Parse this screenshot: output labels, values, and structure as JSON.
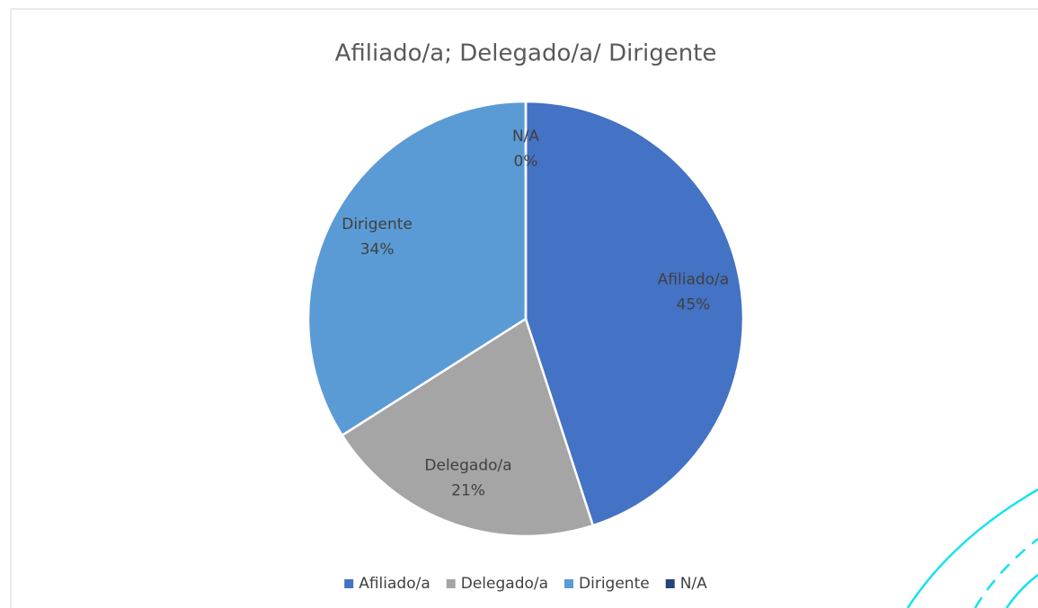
{
  "chart_data": {
    "type": "pie",
    "title": "Afiliado/a; Delegado/a/ Dirigente",
    "categories": [
      "Afiliado/a",
      "Delegado/a",
      "Dirigente",
      "N/A"
    ],
    "values": [
      45,
      21,
      34,
      0
    ],
    "value_labels": [
      "45%",
      "21%",
      "34%",
      "0%"
    ],
    "colors": [
      "#4472c4",
      "#a5a5a5",
      "#5b9bd5",
      "#264478"
    ],
    "legend": "bottom"
  }
}
